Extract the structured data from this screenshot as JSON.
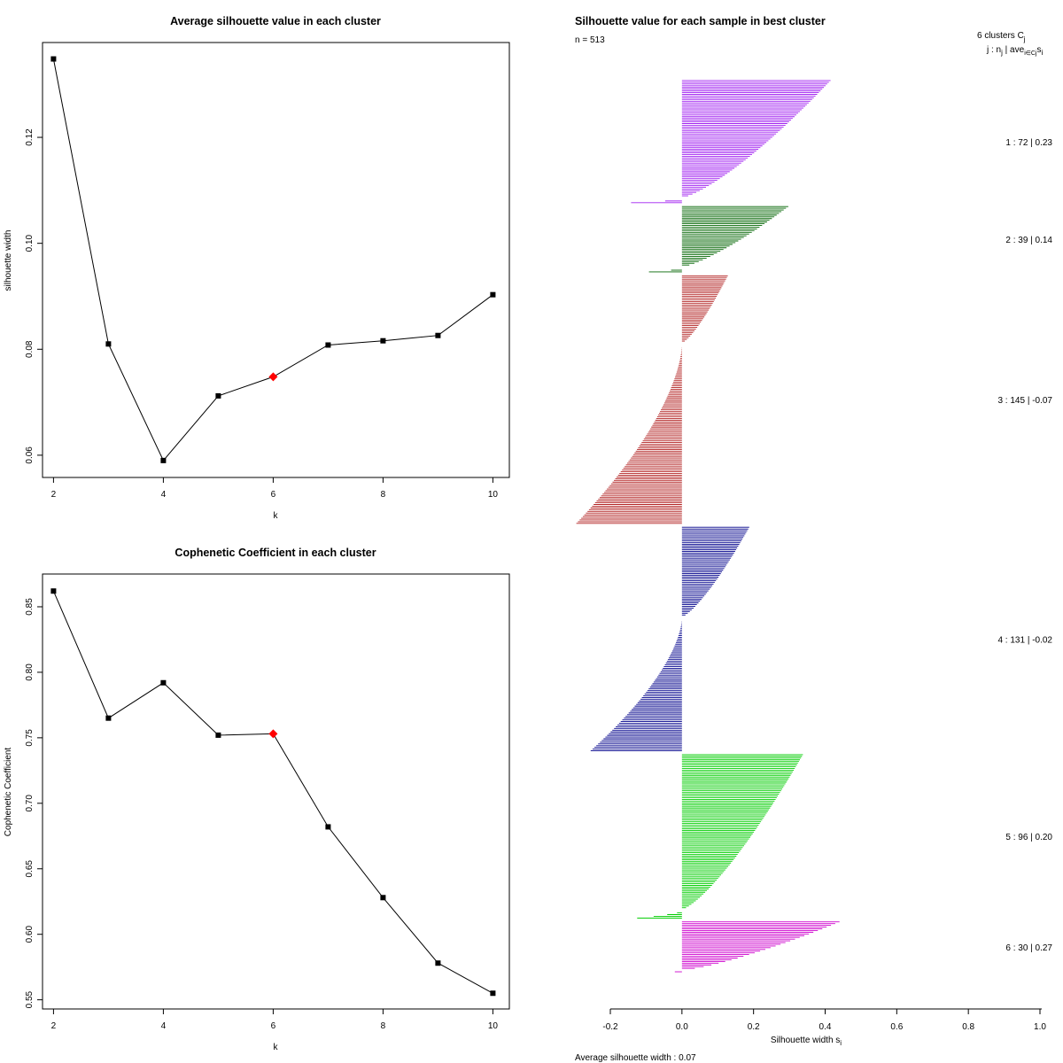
{
  "chart_data": [
    {
      "type": "line",
      "title": "Average silhouette value in each cluster",
      "xlabel": "k",
      "ylabel": "silhouette width",
      "x": [
        2,
        3,
        4,
        5,
        6,
        7,
        8,
        9,
        10
      ],
      "y": [
        0.1348,
        0.081,
        0.059,
        0.0712,
        0.0748,
        0.0808,
        0.0816,
        0.0826,
        0.0903
      ],
      "highlight_x": 6,
      "xticks": [
        2,
        4,
        6,
        8,
        10
      ],
      "xtick_labels": [
        "2",
        "4",
        "6",
        "8",
        "10"
      ],
      "yticks": [
        0.06,
        0.08,
        0.1,
        0.12
      ],
      "ytick_labels": [
        "0.06",
        "0.08",
        "0.10",
        "0.12"
      ],
      "xlim": [
        1.8,
        10.3
      ],
      "ylim": [
        0.0558,
        0.1379
      ]
    },
    {
      "type": "line",
      "title": "Cophenetic Coefficient in each cluster",
      "xlabel": "k",
      "ylabel": "Cophenetic Coefficient",
      "x": [
        2,
        3,
        4,
        5,
        6,
        7,
        8,
        9,
        10
      ],
      "y": [
        0.862,
        0.765,
        0.792,
        0.752,
        0.753,
        0.682,
        0.628,
        0.578,
        0.555
      ],
      "highlight_x": 6,
      "xticks": [
        2,
        4,
        6,
        8,
        10
      ],
      "xtick_labels": [
        "2",
        "4",
        "6",
        "8",
        "10"
      ],
      "yticks": [
        0.55,
        0.6,
        0.65,
        0.7,
        0.75,
        0.8,
        0.85
      ],
      "ytick_labels": [
        "0.55",
        "0.60",
        "0.65",
        "0.70",
        "0.75",
        "0.80",
        "0.85"
      ],
      "xlim": [
        1.8,
        10.3
      ],
      "ylim": [
        0.543,
        0.875
      ]
    },
    {
      "type": "bar",
      "title": "Silhouette value for each sample in best cluster",
      "n_label": "n = 513",
      "header_line1": "6  clusters  C",
      "header_sub1": "j",
      "header_line2": "j :  n",
      "header_sub2": "j",
      "header_line3": " | ave",
      "header_sub3": "i∈Cj",
      "header_line4": "s",
      "header_sub4": "i",
      "xlabel": "Silhouette width s",
      "xlabel_sub": "i",
      "xlim": [
        -0.2,
        1.0
      ],
      "xticks": [
        -0.2,
        0.0,
        0.2,
        0.4,
        0.6,
        0.8,
        1.0
      ],
      "xtick_labels": [
        "-0.2",
        "0.0",
        "0.2",
        "0.4",
        "0.6",
        "0.8",
        "1.0"
      ],
      "average_label": "Average silhouette width :  0.07",
      "average": 0.07,
      "clusters": [
        {
          "id": 1,
          "n": 72,
          "avg": 0.23,
          "label": "1 :   72  |  0.23",
          "color": "#a020f0",
          "max": 0.415,
          "min": -0.142,
          "neg": 3
        },
        {
          "id": 2,
          "n": 39,
          "avg": 0.14,
          "label": "2 :   39  |  0.14",
          "color": "#006400",
          "max": 0.297,
          "min": -0.092,
          "neg": 3
        },
        {
          "id": 3,
          "n": 145,
          "avg": -0.07,
          "label": "3 :  145  |  -0.07",
          "color": "#b22222",
          "max": 0.128,
          "min": -0.295,
          "neg": 105
        },
        {
          "id": 4,
          "n": 131,
          "avg": -0.02,
          "label": "4 :  131  |  -0.02",
          "color": "#00008b",
          "max": 0.188,
          "min": -0.255,
          "neg": 78
        },
        {
          "id": 5,
          "n": 96,
          "avg": 0.2,
          "label": "5 :   96  |  0.20",
          "color": "#00cd00",
          "max": 0.338,
          "min": -0.125,
          "neg": 5
        },
        {
          "id": 6,
          "n": 30,
          "avg": 0.27,
          "label": "6 :   30  |  0.27",
          "color": "#cd00cd",
          "max": 0.44,
          "min": -0.02,
          "neg": 1
        }
      ]
    }
  ]
}
